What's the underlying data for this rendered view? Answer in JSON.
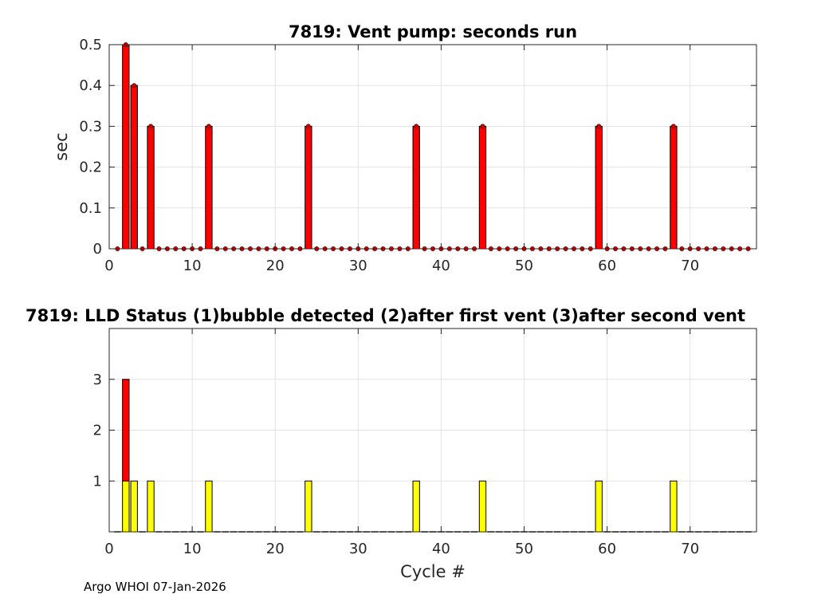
{
  "footer": "Argo WHOI 07-Jan-2026",
  "colors": {
    "bar": "#ff0000",
    "bubble": "#ffff00",
    "edge": "#000000",
    "grid": "#e3e3e3",
    "axis": "#262626",
    "marker": "#d40000"
  },
  "chart_data": [
    {
      "type": "bar",
      "title": "7819: Vent pump: seconds run",
      "xlabel": "",
      "ylabel": "sec",
      "xlim": [
        0,
        78
      ],
      "ylim": [
        0,
        0.5
      ],
      "grid": true,
      "x_ticks": [
        0,
        10,
        20,
        30,
        40,
        50,
        60,
        70
      ],
      "y_ticks": [
        0,
        0.1,
        0.2,
        0.3,
        0.4,
        0.5
      ],
      "x": [
        1,
        2,
        3,
        4,
        5,
        6,
        7,
        8,
        9,
        10,
        11,
        12,
        13,
        14,
        15,
        16,
        17,
        18,
        19,
        20,
        21,
        22,
        23,
        24,
        25,
        26,
        27,
        28,
        29,
        30,
        31,
        32,
        33,
        34,
        35,
        36,
        37,
        38,
        39,
        40,
        41,
        42,
        43,
        44,
        45,
        46,
        47,
        48,
        49,
        50,
        51,
        52,
        53,
        54,
        55,
        56,
        57,
        58,
        59,
        60,
        61,
        62,
        63,
        64,
        65,
        66,
        67,
        68,
        69,
        70,
        71,
        72,
        73,
        74,
        75,
        76,
        77
      ],
      "values": [
        0,
        0.5,
        0.4,
        0,
        0.3,
        0,
        0,
        0,
        0,
        0,
        0,
        0.3,
        0,
        0,
        0,
        0,
        0,
        0,
        0,
        0,
        0,
        0,
        0,
        0.3,
        0,
        0,
        0,
        0,
        0,
        0,
        0,
        0,
        0,
        0,
        0,
        0,
        0.3,
        0,
        0,
        0,
        0,
        0,
        0,
        0,
        0.3,
        0,
        0,
        0,
        0,
        0,
        0,
        0,
        0,
        0,
        0,
        0,
        0,
        0,
        0.3,
        0,
        0,
        0,
        0,
        0,
        0,
        0,
        0,
        0.3,
        0,
        0,
        0,
        0,
        0,
        0,
        0,
        0,
        0
      ]
    },
    {
      "type": "bar",
      "title": "7819: LLD Status   (1)bubble detected   (2)after first vent  (3)after second vent",
      "xlabel": "Cycle #",
      "ylabel": "",
      "xlim": [
        0,
        78
      ],
      "ylim": [
        0,
        4
      ],
      "grid": true,
      "x_ticks": [
        0,
        10,
        20,
        30,
        40,
        50,
        60,
        70
      ],
      "y_ticks": [
        1,
        2,
        3
      ],
      "x": [
        1,
        2,
        3,
        4,
        5,
        6,
        7,
        8,
        9,
        10,
        11,
        12,
        13,
        14,
        15,
        16,
        17,
        18,
        19,
        20,
        21,
        22,
        23,
        24,
        25,
        26,
        27,
        28,
        29,
        30,
        31,
        32,
        33,
        34,
        35,
        36,
        37,
        38,
        39,
        40,
        41,
        42,
        43,
        44,
        45,
        46,
        47,
        48,
        49,
        50,
        51,
        52,
        53,
        54,
        55,
        56,
        57,
        58,
        59,
        60,
        61,
        62,
        63,
        64,
        65,
        66,
        67,
        68,
        69,
        70,
        71,
        72,
        73,
        74,
        75,
        76,
        77
      ],
      "values": [
        0,
        3,
        1,
        0,
        1,
        0,
        0,
        0,
        0,
        0,
        0,
        1,
        0,
        0,
        0,
        0,
        0,
        0,
        0,
        0,
        0,
        0,
        0,
        1,
        0,
        0,
        0,
        0,
        0,
        0,
        0,
        0,
        0,
        0,
        0,
        0,
        1,
        0,
        0,
        0,
        0,
        0,
        0,
        0,
        1,
        0,
        0,
        0,
        0,
        0,
        0,
        0,
        0,
        0,
        0,
        0,
        0,
        0,
        1,
        0,
        0,
        0,
        0,
        0,
        0,
        0,
        0,
        1,
        0,
        0,
        0,
        0,
        0,
        0,
        0,
        0,
        0
      ]
    }
  ]
}
